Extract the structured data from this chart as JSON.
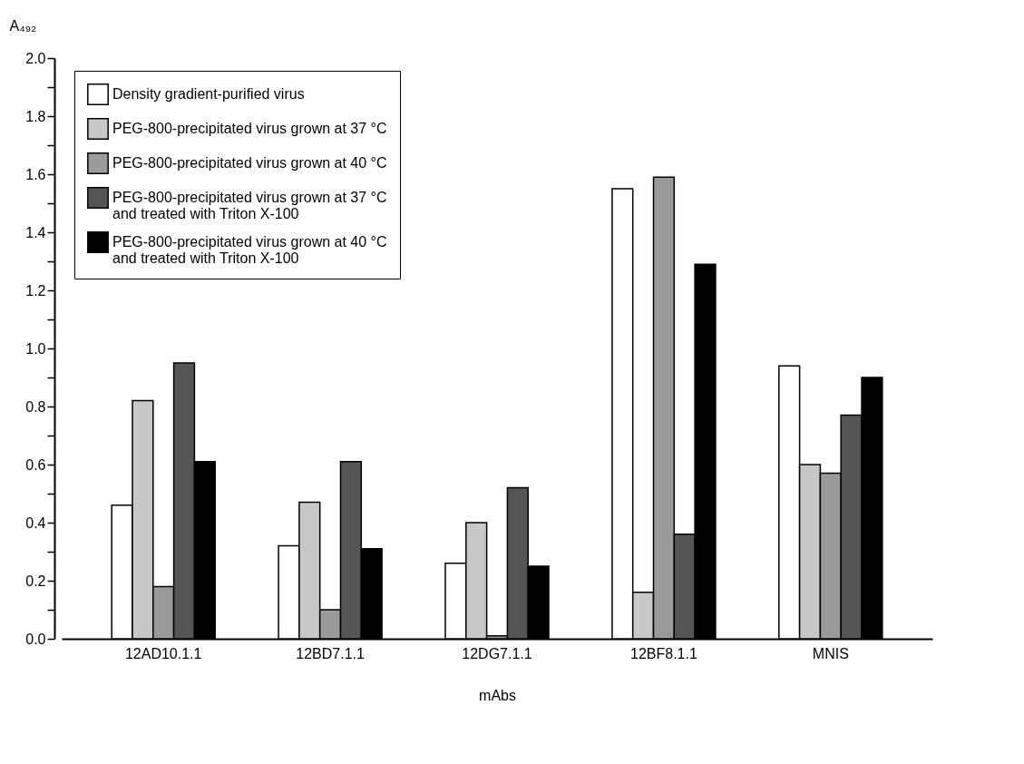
{
  "chart_data": {
    "type": "bar",
    "xlabel": "mAbs",
    "ylabel": "A₄₉₂",
    "categories": [
      "12AD10.1.1",
      "12BD7.1.1",
      "12DG7.1.1",
      "12BF8.1.1",
      "MNIS"
    ],
    "series": [
      {
        "name": "Density gradient-purified virus",
        "color": "#ffffff",
        "values": [
          0.46,
          0.32,
          0.26,
          1.55,
          0.94
        ]
      },
      {
        "name": "PEG-800-precipitated virus grown at 37 °C",
        "color": "#c8c8c8",
        "values": [
          0.82,
          0.47,
          0.4,
          0.16,
          0.6
        ]
      },
      {
        "name": "PEG-800-precipitated virus grown at 40 °C",
        "color": "#9a9a9a",
        "values": [
          0.18,
          0.1,
          0.01,
          1.59,
          0.57
        ]
      },
      {
        "name": "PEG-800-precipitated virus grown at 37 °C\nand treated with Triton X-100",
        "color": "#555555",
        "values": [
          0.95,
          0.61,
          0.52,
          0.36,
          0.77
        ]
      },
      {
        "name": "PEG-800-precipitated virus grown at 40 °C\n and treated with Triton X-100",
        "color": "#000000",
        "values": [
          0.61,
          0.31,
          0.25,
          1.29,
          0.9
        ]
      }
    ],
    "ylim": [
      0,
      2
    ],
    "yticks": [
      {
        "value": 0,
        "label": "0.0"
      },
      {
        "value": 0.1,
        "label": null
      },
      0.2,
      {
        "value": 0.3,
        "label": null
      },
      0.4,
      {
        "value": 0.5,
        "label": null
      },
      0.6,
      {
        "value": 0.7,
        "label": null
      },
      0.8,
      {
        "value": 0.9,
        "label": null
      },
      {
        "value": 1,
        "label": "1.0"
      },
      {
        "value": 1.1,
        "label": null
      },
      1.2,
      {
        "value": 1.3,
        "label": null
      },
      1.4,
      {
        "value": 1.5,
        "label": null
      },
      1.6,
      {
        "value": 1.7,
        "label": null
      },
      1.8,
      {
        "value": 1.9,
        "label": null
      },
      {
        "value": 2,
        "label": "2.0"
      }
    ],
    "legend": "top left",
    "grid": false
  }
}
